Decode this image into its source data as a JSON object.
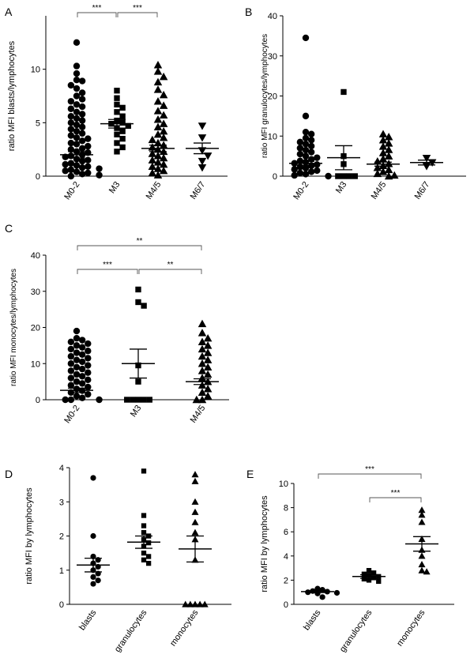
{
  "figure": {
    "panels": [
      {
        "id": "A",
        "letter": "A",
        "chart_data": {
          "type": "scatter",
          "subtype": "dot-plot with mean and SEM",
          "ylabel": "ratio MFI blasts/lymphocytes",
          "categories": [
            "M0-2",
            "M3",
            "M4/5",
            "M6/7"
          ],
          "markers": [
            "circle",
            "square",
            "triangle",
            "triangle-down"
          ],
          "ylim": [
            0,
            15
          ],
          "yticks": [
            0,
            5,
            10
          ],
          "means": [
            2.0,
            4.9,
            2.6,
            2.6
          ],
          "sem": [
            0.3,
            0.4,
            0.3,
            0.5
          ],
          "points": [
            [
              12.5,
              10.3,
              9.6,
              9.0,
              8.9,
              8.5,
              8.2,
              7.8,
              7.5,
              7.2,
              7.0,
              6.7,
              6.5,
              6.3,
              6.0,
              5.8,
              5.6,
              5.4,
              5.2,
              5.0,
              4.8,
              4.6,
              4.4,
              4.2,
              4.0,
              3.8,
              3.6,
              3.5,
              3.3,
              3.1,
              3.0,
              2.8,
              2.6,
              2.5,
              2.3,
              2.2,
              2.0,
              1.9,
              1.8,
              1.6,
              1.5,
              1.4,
              1.2,
              1.1,
              1.0,
              0.9,
              0.8,
              0.7,
              0.6,
              0.5,
              0.4,
              0.3,
              0.2,
              0.1,
              0.0
            ],
            [
              8.0,
              7.3,
              6.7,
              6.4,
              6.0,
              5.6,
              5.2,
              5.0,
              4.9,
              4.7,
              4.5,
              4.2,
              3.9,
              3.5,
              3.1,
              2.7,
              2.3
            ],
            [
              10.4,
              9.8,
              9.3,
              8.8,
              8.1,
              7.6,
              7.0,
              6.6,
              6.1,
              5.7,
              5.3,
              4.9,
              4.6,
              4.2,
              3.9,
              3.6,
              3.4,
              3.1,
              2.9,
              2.7,
              2.5,
              2.3,
              2.1,
              1.9,
              1.7,
              1.5,
              1.3,
              1.1,
              0.9,
              0.7,
              0.5,
              0.3,
              0.1
            ],
            [
              4.7,
              3.6,
              2.4,
              1.9,
              1.4,
              0.8
            ]
          ],
          "comparisons": [
            {
              "from": 0,
              "to": 1,
              "label": "***"
            },
            {
              "from": 1,
              "to": 2,
              "label": "***"
            }
          ]
        }
      },
      {
        "id": "B",
        "letter": "B",
        "chart_data": {
          "type": "scatter",
          "subtype": "dot-plot with mean and SEM",
          "ylabel": "ratio MFI granulocytes/lymphocytes",
          "categories": [
            "M0-2",
            "M3",
            "M4/5",
            "M6/7"
          ],
          "markers": [
            "circle",
            "square",
            "triangle",
            "triangle-down"
          ],
          "ylim": [
            0,
            40
          ],
          "yticks": [
            0,
            10,
            20,
            30,
            40
          ],
          "means": [
            3.2,
            4.6,
            3.0,
            3.4
          ],
          "sem": [
            0.5,
            3.0,
            0.5,
            0.6
          ],
          "points": [
            [
              34.5,
              15.0,
              11.0,
              10.5,
              9.5,
              9.0,
              8.5,
              8.0,
              7.5,
              7.0,
              6.5,
              6.0,
              5.5,
              5.0,
              4.6,
              4.2,
              3.8,
              3.5,
              3.2,
              2.9,
              2.6,
              2.3,
              2.0,
              1.7,
              1.4,
              1.1,
              0.8,
              0.5,
              0.2,
              0.0
            ],
            [
              21.0,
              5.0,
              3.0,
              0.0,
              0.0,
              0.0,
              0.0
            ],
            [
              10.5,
              9.8,
              9.0,
              8.2,
              7.4,
              6.6,
              5.8,
              5.0,
              4.3,
              3.7,
              3.1,
              2.6,
              2.1,
              1.6,
              1.1,
              0.6,
              0.2,
              0.0
            ],
            [
              4.5,
              3.4,
              2.5
            ]
          ],
          "comparisons": []
        }
      },
      {
        "id": "C",
        "letter": "C",
        "chart_data": {
          "type": "scatter",
          "subtype": "dot-plot with mean and SEM",
          "ylabel": "ratio MFI monocytes/lymphocytes",
          "categories": [
            "M0-2",
            "M3",
            "M4/5"
          ],
          "markers": [
            "circle",
            "square",
            "triangle"
          ],
          "ylim": [
            0,
            40
          ],
          "yticks": [
            0,
            10,
            20,
            30,
            40
          ],
          "means": [
            2.6,
            10.0,
            5.0
          ],
          "sem": [
            0.6,
            4.0,
            0.8
          ],
          "points": [
            [
              19.0,
              17.0,
              16.5,
              16.0,
              15.5,
              15.0,
              14.5,
              14.0,
              13.5,
              13.0,
              12.5,
              12.0,
              11.5,
              11.0,
              10.5,
              10.0,
              9.5,
              9.0,
              8.5,
              8.0,
              7.5,
              7.0,
              6.5,
              6.0,
              5.5,
              5.0,
              4.5,
              4.0,
              3.5,
              3.0,
              2.5,
              2.0,
              1.5,
              1.0,
              0.5,
              0.0,
              0.0,
              0.0
            ],
            [
              30.5,
              27.0,
              26.0,
              9.5,
              5.0,
              0.0,
              0.0,
              0.0,
              0.0,
              0.0
            ],
            [
              21.0,
              18.5,
              17.0,
              16.0,
              15.0,
              14.0,
              13.0,
              12.0,
              11.0,
              10.0,
              9.0,
              8.0,
              7.0,
              6.0,
              5.0,
              4.0,
              3.0,
              2.0,
              1.0,
              0.0,
              0.0
            ]
          ],
          "comparisons": [
            {
              "from": 0,
              "to": 2,
              "label": "**",
              "level": 2
            },
            {
              "from": 0,
              "to": 1,
              "label": "***",
              "level": 1
            },
            {
              "from": 1,
              "to": 2,
              "label": "**",
              "level": 1
            }
          ]
        }
      },
      {
        "id": "D",
        "letter": "D",
        "chart_data": {
          "type": "scatter",
          "subtype": "dot-plot with mean and SEM",
          "ylabel": "ratio MFI by lymphocytes",
          "categories": [
            "blasts",
            "granulocytes",
            "monocytes"
          ],
          "markers": [
            "circle",
            "square",
            "triangle"
          ],
          "ylim": [
            0,
            4
          ],
          "yticks": [
            0,
            1,
            2,
            3,
            4
          ],
          "means": [
            1.15,
            1.82,
            1.62
          ],
          "sem": [
            0.2,
            0.18,
            0.38
          ],
          "points": [
            [
              3.7,
              2.0,
              1.4,
              1.3,
              1.2,
              1.1,
              1.0,
              0.9,
              0.8,
              0.7,
              0.6
            ],
            [
              3.9,
              2.6,
              2.3,
              2.1,
              2.0,
              1.9,
              1.8,
              1.7,
              1.5,
              1.4,
              1.3,
              1.2
            ],
            [
              3.8,
              3.6,
              3.0,
              2.7,
              2.4,
              2.1,
              1.9,
              1.3,
              0.0,
              0.0,
              0.0,
              0.0,
              0.0
            ]
          ],
          "comparisons": []
        }
      },
      {
        "id": "E",
        "letter": "E",
        "chart_data": {
          "type": "scatter",
          "subtype": "dot-plot with mean and SEM",
          "ylabel": "ratio MFI by lymphocytes",
          "categories": [
            "blasts",
            "granulocytes",
            "monocytes"
          ],
          "markers": [
            "circle",
            "square",
            "triangle"
          ],
          "ylim": [
            0,
            10
          ],
          "yticks": [
            0,
            2,
            4,
            6,
            8,
            10
          ],
          "means": [
            1.05,
            2.3,
            5.0
          ],
          "sem": [
            0.08,
            0.15,
            0.6
          ],
          "points": [
            [
              1.3,
              1.2,
              1.1,
              1.05,
              1.0,
              0.95,
              0.9,
              0.6
            ],
            [
              2.8,
              2.6,
              2.5,
              2.4,
              2.3,
              2.2,
              2.1,
              2.0,
              1.9
            ],
            [
              7.8,
              7.4,
              6.8,
              5.4,
              4.5,
              4.0,
              3.3,
              2.8,
              2.7
            ]
          ],
          "comparisons": [
            {
              "from": 0,
              "to": 2,
              "label": "***",
              "level": 2
            },
            {
              "from": 1,
              "to": 2,
              "label": "***",
              "level": 1
            }
          ]
        }
      }
    ]
  }
}
